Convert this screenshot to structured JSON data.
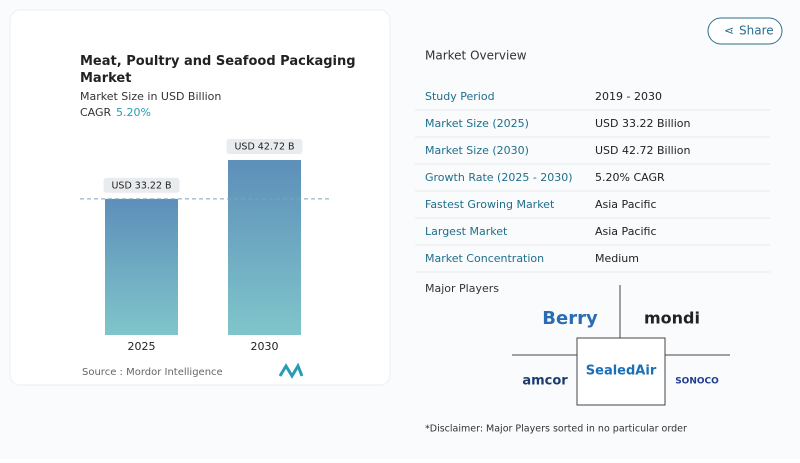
{
  "chart_data": {
    "type": "bar",
    "title": "Meat, Poultry and Seafood Packaging Market",
    "subtitle": "Market Size in USD Billion",
    "cagr_label": "CAGR",
    "cagr_value": "5.20%",
    "categories": [
      "2025",
      "2030"
    ],
    "values": [
      33.22,
      42.72
    ],
    "value_labels": [
      "USD 33.22 B",
      "USD 42.72 B"
    ],
    "source": "Source :  Mordor Intelligence"
  },
  "share": "Share",
  "overview": {
    "title": "Market Overview",
    "rows": [
      [
        "Study Period",
        "2019 - 2030"
      ],
      [
        "Market Size (2025)",
        "USD 33.22 Billion"
      ],
      [
        "Market Size (2030)",
        "USD 42.72 Billion"
      ],
      [
        "Growth Rate (2025 - 2030)",
        "5.20% CAGR"
      ],
      [
        "Fastest Growing Market",
        "Asia Pacific"
      ],
      [
        "Largest Market",
        "Asia Pacific"
      ],
      [
        "Market Concentration",
        "Medium"
      ]
    ]
  },
  "players": {
    "title": "Major Players",
    "logos": [
      "Berry",
      "mondi",
      "amcor",
      "SealedAir",
      "SONOCO"
    ]
  },
  "disclaimer": "*Disclaimer: Major Players sorted in no particular order"
}
